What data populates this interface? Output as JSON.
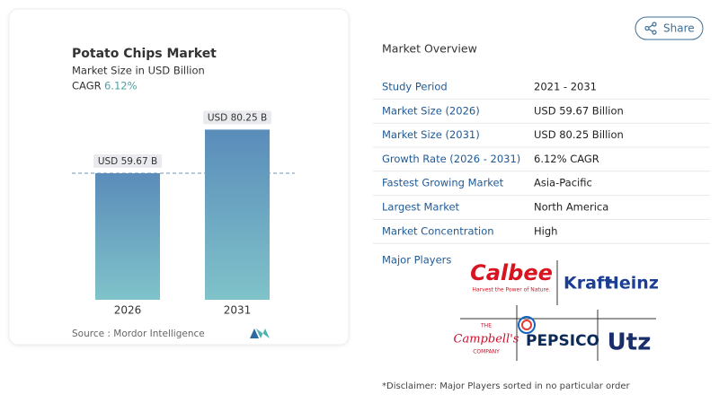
{
  "chart_data": {
    "type": "bar",
    "title": "Potato Chips Market",
    "subtitle": "Market Size in USD Billion",
    "cagr_label": "CAGR",
    "cagr_value": "6.12%",
    "categories": [
      "2026",
      "2031"
    ],
    "values": [
      59.67,
      80.25
    ],
    "value_labels": [
      "USD 59.67 B",
      "USD 80.25 B"
    ],
    "source": "Source :  Mordor Intelligence"
  },
  "share": "Share",
  "overview": {
    "title": "Market Overview",
    "rows": [
      {
        "label": "Study Period",
        "value": "2021 - 2031"
      },
      {
        "label": "Market Size (2026)",
        "value": "USD 59.67 Billion"
      },
      {
        "label": "Market Size (2031)",
        "value": "USD 80.25 Billion"
      },
      {
        "label": "Growth Rate (2026 - 2031)",
        "value": "6.12% CAGR"
      },
      {
        "label": "Fastest Growing Market",
        "value": "Asia-Pacific"
      },
      {
        "label": "Largest Market",
        "value": "North America"
      },
      {
        "label": "Market Concentration",
        "value": "High"
      }
    ]
  },
  "players": {
    "title": "Major Players",
    "logos": {
      "calbee": "Calbee",
      "calbee_tagline": "Harvest the Power of Nature.",
      "kraft": "Kraft",
      "heinz": "Heinz",
      "campbells_top": "THE",
      "campbells": "Campbell's",
      "campbells_bottom": "COMPANY",
      "pepsico": "PEPSICO",
      "utz": "Utz"
    }
  },
  "disclaimer": "*Disclaimer: Major Players sorted in no particular order"
}
